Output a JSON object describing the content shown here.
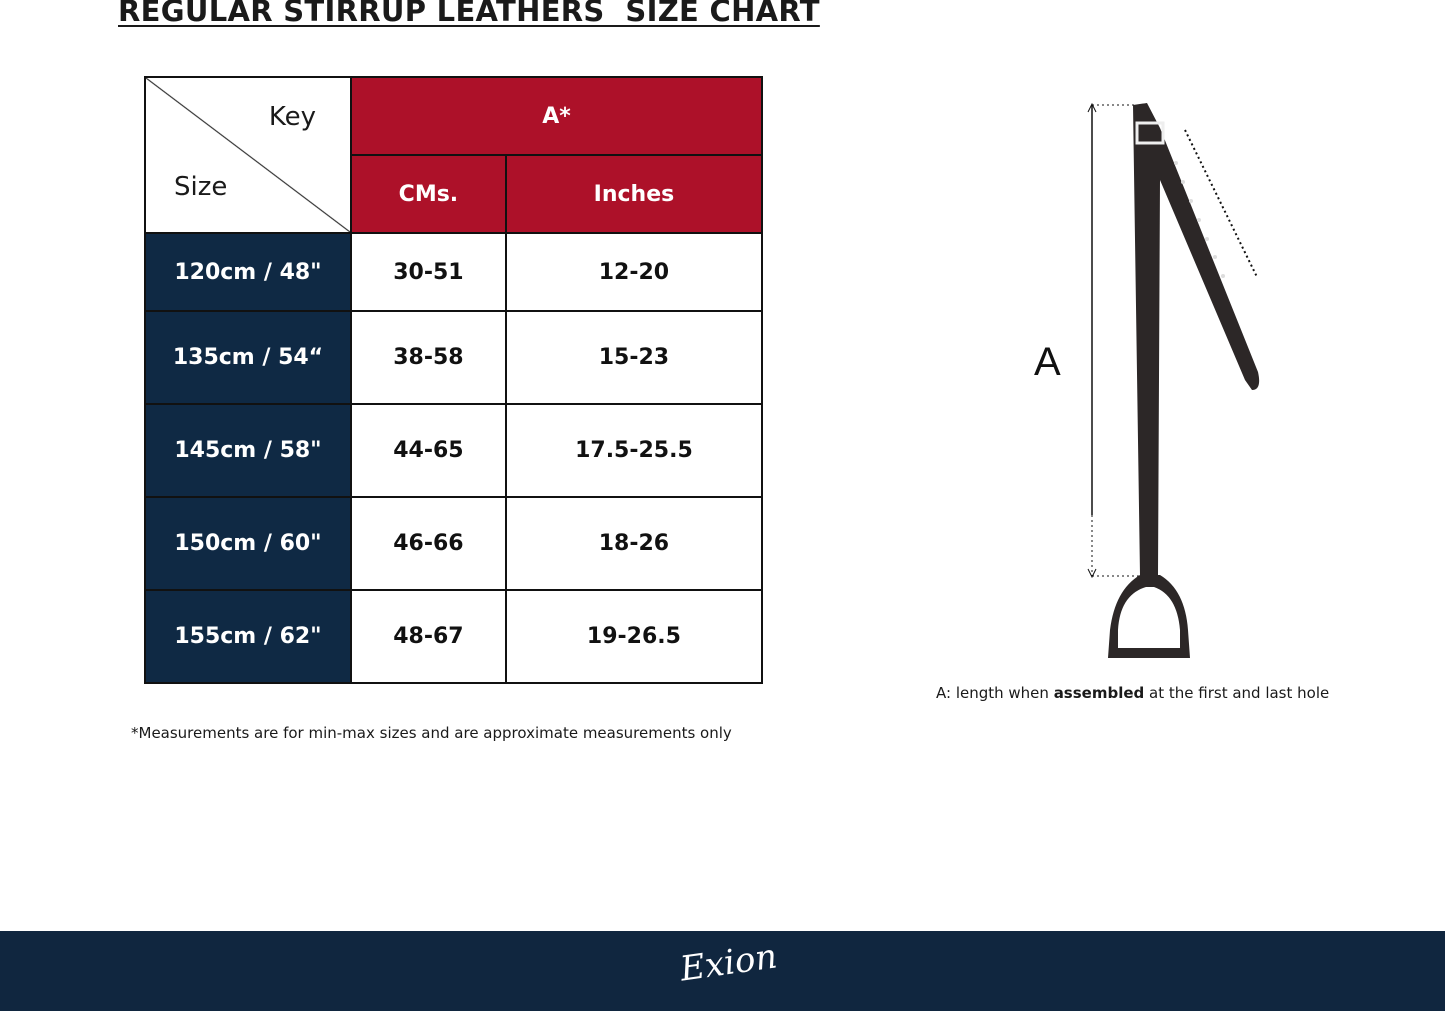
{
  "title": "REGULAR STIRRUP LEATHERS  SIZE CHART",
  "table": {
    "key_label": "Key",
    "size_label": "Size",
    "group_header": "A*",
    "columns": [
      "CMs.",
      "Inches"
    ],
    "rows": [
      {
        "size": "120cm / 48\"",
        "cms": "30-51",
        "inches": "12-20"
      },
      {
        "size": "135cm / 54“",
        "cms": "38-58",
        "inches": "15-23"
      },
      {
        "size": "145cm / 58\"",
        "cms": "44-65",
        "inches": "17.5-25.5"
      },
      {
        "size": "150cm / 60\"",
        "cms": "46-66",
        "inches": "18-26"
      },
      {
        "size": "155cm / 62\"",
        "cms": "48-67",
        "inches": "19-26.5"
      }
    ]
  },
  "note": "*Measurements are for min-max sizes and are approximate measurements only",
  "diagram": {
    "label": "A",
    "caption_pre": "A: length when ",
    "caption_bold": "assembled",
    "caption_post": " at the first and last hole"
  },
  "footer": {
    "logo": "Exion"
  },
  "colors": {
    "red": "#ad1129",
    "navy": "#0f2944",
    "footer": "#10263f"
  }
}
